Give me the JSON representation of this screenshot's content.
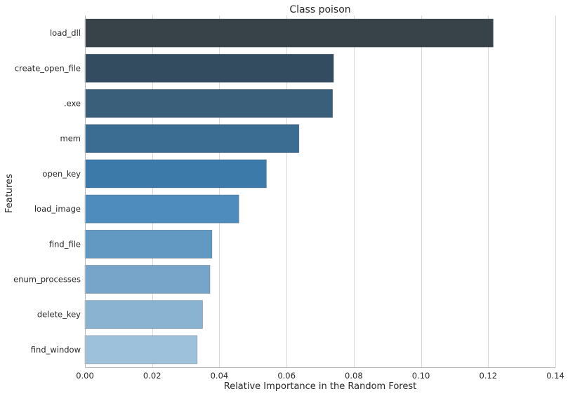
{
  "chart_data": {
    "type": "bar",
    "orientation": "horizontal",
    "title": "Class poison",
    "xlabel": "Relative Importance in the Random Forest",
    "ylabel": "Features",
    "xlim": [
      0,
      0.14
    ],
    "x_ticks": [
      0.0,
      0.02,
      0.04,
      0.06,
      0.08,
      0.1,
      0.12,
      0.14
    ],
    "x_tick_labels": [
      "0.00",
      "0.02",
      "0.04",
      "0.06",
      "0.08",
      "0.10",
      "0.12",
      "0.14"
    ],
    "grid": "vertical",
    "categories": [
      "load_dll",
      "create_open_file",
      ".exe",
      "mem",
      "open_key",
      "load_image",
      "find_file",
      "enum_processes",
      "delete_key",
      "find_window"
    ],
    "values": [
      0.1215,
      0.074,
      0.0737,
      0.0637,
      0.054,
      0.0458,
      0.0378,
      0.0372,
      0.035,
      0.0334
    ],
    "colors": [
      "#384349",
      "#344c5f",
      "#3a5f7a",
      "#3b6c92",
      "#3c7aaa",
      "#4d8cbd",
      "#6299c3",
      "#77a5c9",
      "#8ab3d1",
      "#9dc1db"
    ]
  }
}
